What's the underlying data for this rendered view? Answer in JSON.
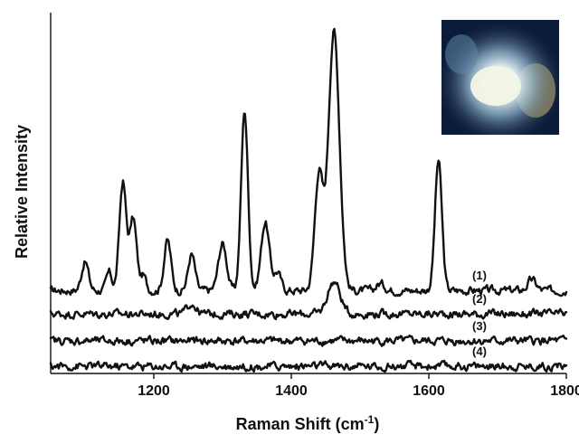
{
  "chart_data": {
    "type": "line",
    "title": "",
    "xlabel": "Raman Shift (cm",
    "xlabel_superscript": "-1",
    "xlabel_suffix": ")",
    "ylabel": "Relative Intensity",
    "xlim": [
      1050,
      1800
    ],
    "xticks": [
      1200,
      1400,
      1600,
      1800
    ],
    "xtick_labels": [
      "1200",
      "1400",
      "1600",
      "1800"
    ],
    "ylim": [
      0,
      1
    ],
    "yticks_shown": false,
    "grid": false,
    "series": [
      {
        "label": "(1)",
        "baseline": 0.23,
        "peaks": [
          {
            "x": 1100,
            "h": 0.08,
            "w": 5
          },
          {
            "x": 1135,
            "h": 0.05,
            "w": 4
          },
          {
            "x": 1155,
            "h": 0.3,
            "w": 5
          },
          {
            "x": 1170,
            "h": 0.2,
            "w": 5
          },
          {
            "x": 1185,
            "h": 0.04,
            "w": 4
          },
          {
            "x": 1220,
            "h": 0.14,
            "w": 5
          },
          {
            "x": 1255,
            "h": 0.1,
            "w": 5
          },
          {
            "x": 1300,
            "h": 0.13,
            "w": 6
          },
          {
            "x": 1332,
            "h": 0.5,
            "w": 5
          },
          {
            "x": 1362,
            "h": 0.19,
            "w": 6
          },
          {
            "x": 1380,
            "h": 0.05,
            "w": 5
          },
          {
            "x": 1440,
            "h": 0.32,
            "w": 6
          },
          {
            "x": 1462,
            "h": 0.72,
            "w": 8
          },
          {
            "x": 1530,
            "h": 0.02,
            "w": 6
          },
          {
            "x": 1614,
            "h": 0.36,
            "w": 5
          },
          {
            "x": 1750,
            "h": 0.03,
            "w": 6
          }
        ]
      },
      {
        "label": "(2)",
        "baseline": 0.165,
        "peaks": [
          {
            "x": 1255,
            "h": 0.03,
            "w": 6
          },
          {
            "x": 1462,
            "h": 0.09,
            "w": 9
          }
        ]
      },
      {
        "label": "(3)",
        "baseline": 0.09,
        "peaks": []
      },
      {
        "label": "(4)",
        "baseline": 0.02,
        "peaks": []
      }
    ]
  },
  "inset": {
    "icon": "microscope-photo-inset",
    "colors": [
      "#0b1c3a",
      "#f2f5e6",
      "#cfe3ea",
      "#5f87a8",
      "#bfa464"
    ]
  }
}
